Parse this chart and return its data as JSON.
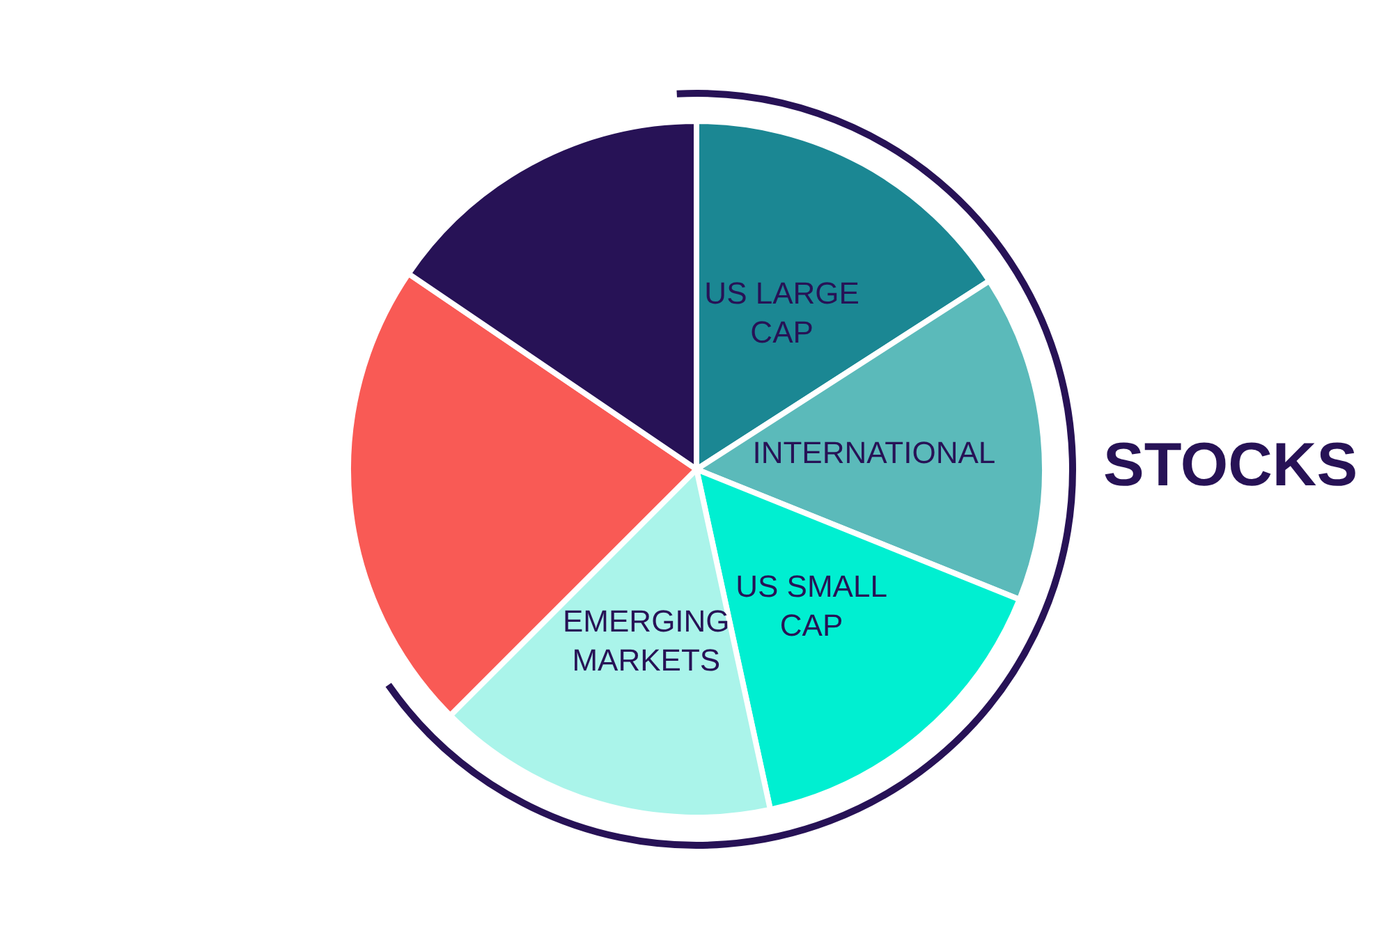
{
  "chart_data": {
    "type": "pie",
    "categories": [
      "US LARGE CAP",
      "INTERNATIONAL",
      "US SMALL CAP",
      "EMERGING MARKETS",
      null,
      null
    ],
    "values": [
      15.9,
      15.2,
      15.5,
      15.9,
      22,
      15.5
    ],
    "colors": [
      "#1b8793",
      "#5bbaba",
      "#00efd1",
      "#aaf4ea",
      "#f95a55",
      "#271256"
    ],
    "annotations": [
      "STOCKS"
    ],
    "legend": false
  }
}
